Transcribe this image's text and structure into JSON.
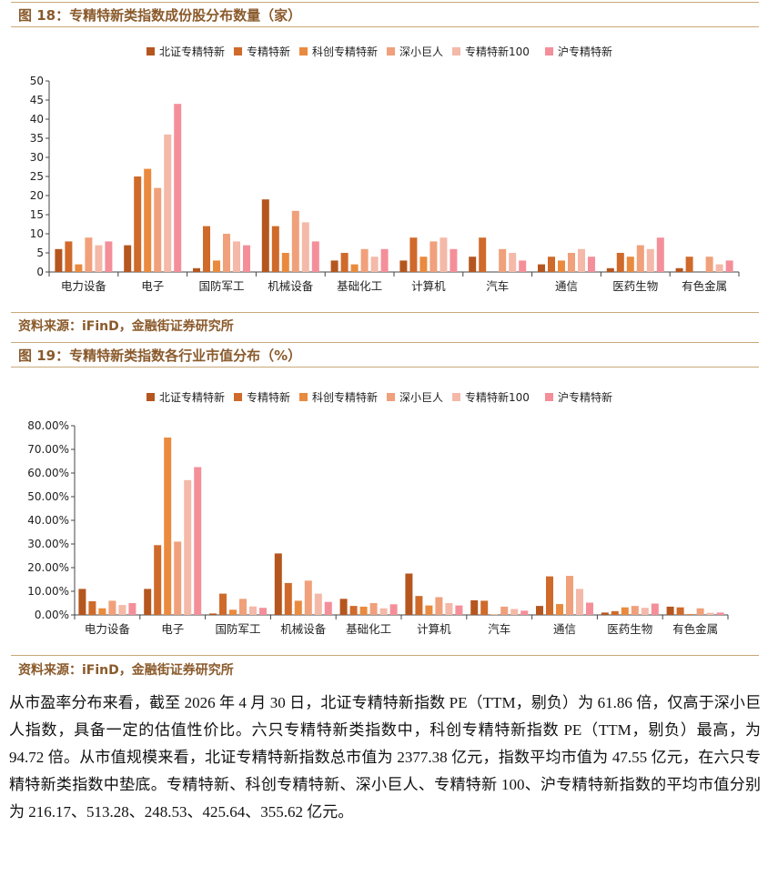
{
  "figure18": {
    "title": "图 18：专精特新类指数成份股分布数量（家）",
    "source": "资料来源：iFinD，金融街证券研究所"
  },
  "figure19": {
    "title": "图 19：专精特新类指数各行业市值分布（%）",
    "source": "资料来源：iFinD，金融街证券研究所"
  },
  "paragraph": "从市盈率分布来看，截至 2026 年 4 月 30 日，北证专精特新指数 PE（TTM，剔负）为 61.86 倍，仅高于深小巨人指数，具备一定的估值性价比。六只专精特新类指数中，科创专精特新指数 PE（TTM，剔负）最高，为 94.72 倍。从市值规模来看，北证专精特新指数总市值为 2377.38 亿元，指数平均市值为 47.55 亿元，在六只专精特新类指数中垫底。专精特新、科创专精特新、深小巨人、专精特新 100、沪专精特新指数的平均市值分别为 216.17、513.28、248.53、425.64、355.62 亿元。",
  "colors": {
    "accent": "#8a5a2b",
    "series": [
      "#b5561f",
      "#cf6a2b",
      "#ea8a3e",
      "#f0a07a",
      "#f4b9a8",
      "#f48f9a"
    ]
  },
  "chart_data": [
    {
      "type": "bar",
      "categories": [
        "电力设备",
        "电子",
        "国防军工",
        "机械设备",
        "基础化工",
        "计算机",
        "汽车",
        "通信",
        "医药生物",
        "有色金属"
      ],
      "ylim": [
        0,
        50
      ],
      "yticks": [
        "0",
        "5",
        "10",
        "15",
        "20",
        "25",
        "30",
        "35",
        "40",
        "45",
        "50"
      ],
      "ytick_values": [
        0,
        5,
        10,
        15,
        20,
        25,
        30,
        35,
        40,
        45,
        50
      ],
      "legend_position": "top-center",
      "series": [
        {
          "name": "北证专精特新",
          "values": [
            6,
            7,
            1,
            19,
            3,
            3,
            4,
            2,
            1,
            1
          ]
        },
        {
          "name": "专精特新",
          "values": [
            8,
            25,
            12,
            12,
            5,
            9,
            9,
            4,
            5,
            4
          ]
        },
        {
          "name": "科创专精特新",
          "values": [
            2,
            27,
            3,
            5,
            2,
            4,
            0,
            3,
            4,
            0
          ]
        },
        {
          "name": "深小巨人",
          "values": [
            9,
            22,
            10,
            16,
            6,
            8,
            6,
            5,
            7,
            4
          ]
        },
        {
          "name": "专精特新100",
          "values": [
            7,
            36,
            8,
            13,
            4,
            9,
            5,
            6,
            6,
            2
          ]
        },
        {
          "name": "沪专精特新",
          "values": [
            8,
            44,
            7,
            8,
            6,
            6,
            3,
            4,
            9,
            3
          ]
        }
      ]
    },
    {
      "type": "bar",
      "categories": [
        "电力设备",
        "电子",
        "国防军工",
        "机械设备",
        "基础化工",
        "计算机",
        "汽车",
        "通信",
        "医药生物",
        "有色金属"
      ],
      "ylim": [
        0,
        80
      ],
      "yticks": [
        "0.00%",
        "10.00%",
        "20.00%",
        "30.00%",
        "40.00%",
        "50.00%",
        "60.00%",
        "70.00%",
        "80.00%"
      ],
      "ytick_values": [
        0,
        10,
        20,
        30,
        40,
        50,
        60,
        70,
        80
      ],
      "legend_position": "top-center",
      "series": [
        {
          "name": "北证专精特新",
          "values": [
            11.0,
            11.0,
            0.6,
            26.0,
            6.8,
            17.5,
            6.2,
            3.8,
            1.0,
            3.5
          ]
        },
        {
          "name": "专精特新",
          "values": [
            5.8,
            29.5,
            9.0,
            13.5,
            3.8,
            8.0,
            6.0,
            16.3,
            1.6,
            3.2
          ]
        },
        {
          "name": "科创专精特新",
          "values": [
            2.8,
            75.0,
            2.2,
            6.0,
            3.5,
            4.0,
            0.2,
            4.6,
            3.2,
            0.4
          ]
        },
        {
          "name": "深小巨人",
          "values": [
            6.0,
            31.0,
            6.8,
            14.5,
            5.0,
            7.5,
            3.5,
            16.5,
            3.8,
            2.8
          ]
        },
        {
          "name": "专精特新100",
          "values": [
            4.2,
            57.0,
            3.6,
            9.0,
            2.8,
            5.0,
            2.5,
            11.0,
            3.0,
            0.9
          ]
        },
        {
          "name": "沪专精特新",
          "values": [
            5.0,
            62.5,
            3.0,
            5.5,
            4.5,
            4.0,
            1.8,
            5.2,
            4.8,
            1.0
          ]
        }
      ]
    }
  ]
}
